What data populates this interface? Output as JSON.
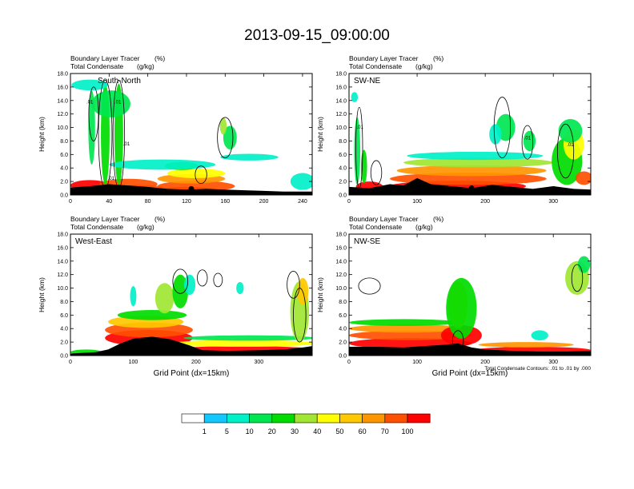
{
  "title": "2013-09-15_09:00:00",
  "chart_data": [
    {
      "type": "heatmap",
      "panel_label": "South-North",
      "subtitle_line1": "Boundary Layer Tracer",
      "subtitle_units1": "(%)",
      "subtitle_line2": "Total Condensate",
      "subtitle_units2": "(g/kg)",
      "ylabel": "Height (km)",
      "xlabel": "",
      "xlim": [
        0,
        250
      ],
      "ylim": [
        0,
        18
      ],
      "xticks": [
        0,
        40,
        80,
        120,
        160,
        200,
        240
      ],
      "yticks": [
        "0.0",
        "2.0",
        "4.0",
        "6.0",
        "8.0",
        "10.0",
        "12.0",
        "14.0",
        "16.0",
        "18.0"
      ],
      "terrain": [
        [
          0,
          1.1
        ],
        [
          20,
          1.3
        ],
        [
          40,
          1.6
        ],
        [
          60,
          1.4
        ],
        [
          80,
          1.2
        ],
        [
          100,
          0.9
        ],
        [
          120,
          0.8
        ],
        [
          140,
          0.9
        ],
        [
          160,
          0.8
        ],
        [
          180,
          0.7
        ],
        [
          200,
          0.6
        ],
        [
          220,
          0.5
        ],
        [
          240,
          0.5
        ],
        [
          250,
          0.5
        ]
      ],
      "blobs": [
        {
          "x": 20,
          "y": 1.4,
          "w": 40,
          "h": 1.6,
          "level": 100
        },
        {
          "x": 120,
          "y": 0.6,
          "w": 70,
          "h": 1.2,
          "level": 100
        },
        {
          "x": 70,
          "y": 0.9,
          "w": 60,
          "h": 1.2,
          "level": 90
        },
        {
          "x": 130,
          "y": 1.3,
          "w": 80,
          "h": 1.6,
          "level": 70
        },
        {
          "x": 60,
          "y": 1.6,
          "w": 60,
          "h": 1.6,
          "level": 70
        },
        {
          "x": 125,
          "y": 2.4,
          "w": 70,
          "h": 1.4,
          "level": 60
        },
        {
          "x": 130,
          "y": 3.2,
          "w": 60,
          "h": 1.4,
          "level": 45
        },
        {
          "x": 115,
          "y": 4.3,
          "w": 35,
          "h": 1.2,
          "level": 25
        },
        {
          "x": 36,
          "y": 9.0,
          "w": 9,
          "h": 15.0,
          "level": 25
        },
        {
          "x": 50,
          "y": 9.0,
          "w": 9,
          "h": 15.0,
          "level": 20
        },
        {
          "x": 22,
          "y": 10.0,
          "w": 7,
          "h": 11.0,
          "level": 15
        },
        {
          "x": 42,
          "y": 13.5,
          "w": 40,
          "h": 4.0,
          "level": 15
        },
        {
          "x": 20,
          "y": 16.3,
          "w": 38,
          "h": 1.6,
          "level": 5
        },
        {
          "x": 95,
          "y": 4.5,
          "w": 110,
          "h": 1.5,
          "level": 5
        },
        {
          "x": 240,
          "y": 2.0,
          "w": 25,
          "h": 2.5,
          "level": 5
        },
        {
          "x": 165,
          "y": 8.5,
          "w": 14,
          "h": 3.5,
          "level": 15
        },
        {
          "x": 185,
          "y": 5.6,
          "w": 60,
          "h": 1.0,
          "level": 5
        },
        {
          "x": 158,
          "y": 10.2,
          "w": 7,
          "h": 2.5,
          "level": 35
        }
      ],
      "contours": [
        {
          "x": 36,
          "y": 9.0,
          "rx": 7,
          "ry": 8
        },
        {
          "x": 50,
          "y": 9.0,
          "rx": 6,
          "ry": 8
        },
        {
          "x": 24,
          "y": 12.0,
          "rx": 5,
          "ry": 4
        },
        {
          "x": 160,
          "y": 8.5,
          "rx": 8,
          "ry": 3
        },
        {
          "x": 135,
          "y": 3.0,
          "rx": 6,
          "ry": 1.3
        }
      ],
      "contour_labels": [
        {
          "x": 20,
          "y": 13.9,
          "text": ".01"
        },
        {
          "x": 49,
          "y": 13.9,
          "text": ".01"
        },
        {
          "x": 58,
          "y": 7.7,
          "text": ".01"
        },
        {
          "x": 42,
          "y": 2.6,
          "text": ".01"
        }
      ],
      "marker": {
        "x": 125,
        "y": 0.9
      }
    },
    {
      "type": "heatmap",
      "panel_label": "SW-NE",
      "subtitle_line1": "Boundary Layer Tracer",
      "subtitle_units1": "(%)",
      "subtitle_line2": "Total Condensate",
      "subtitle_units2": "(g/kg)",
      "ylabel": "Height (km)",
      "xlabel": "",
      "xlim": [
        0,
        355
      ],
      "ylim": [
        0,
        18
      ],
      "xticks": [
        0,
        100,
        200,
        300
      ],
      "yticks": [
        "0.0",
        "2.0",
        "4.0",
        "6.0",
        "8.0",
        "10.0",
        "12.0",
        "14.0",
        "16.0",
        "18.0"
      ],
      "terrain": [
        [
          0,
          1.2
        ],
        [
          30,
          1.0
        ],
        [
          60,
          1.6
        ],
        [
          80,
          1.4
        ],
        [
          100,
          2.5
        ],
        [
          120,
          1.6
        ],
        [
          150,
          1.3
        ],
        [
          180,
          1.0
        ],
        [
          210,
          1.5
        ],
        [
          240,
          1.2
        ],
        [
          270,
          0.9
        ],
        [
          300,
          1.3
        ],
        [
          330,
          0.9
        ],
        [
          355,
          0.8
        ]
      ],
      "blobs": [
        {
          "x": 30,
          "y": 1.2,
          "w": 40,
          "h": 1.6,
          "level": 100
        },
        {
          "x": 160,
          "y": 1.3,
          "w": 200,
          "h": 1.6,
          "level": 100
        },
        {
          "x": 175,
          "y": 2.4,
          "w": 230,
          "h": 1.8,
          "level": 80
        },
        {
          "x": 180,
          "y": 3.6,
          "w": 220,
          "h": 1.6,
          "level": 60
        },
        {
          "x": 190,
          "y": 4.8,
          "w": 220,
          "h": 1.4,
          "level": 35
        },
        {
          "x": 185,
          "y": 5.8,
          "w": 200,
          "h": 1.2,
          "level": 5
        },
        {
          "x": 320,
          "y": 5.0,
          "w": 45,
          "h": 7.0,
          "level": 25
        },
        {
          "x": 330,
          "y": 7.5,
          "w": 30,
          "h": 4.5,
          "level": 45
        },
        {
          "x": 325,
          "y": 9.5,
          "w": 35,
          "h": 3.5,
          "level": 10
        },
        {
          "x": 230,
          "y": 10.0,
          "w": 28,
          "h": 4.0,
          "level": 15
        },
        {
          "x": 215,
          "y": 9.0,
          "w": 18,
          "h": 3.0,
          "level": 5
        },
        {
          "x": 265,
          "y": 8.0,
          "w": 18,
          "h": 3.0,
          "level": 10
        },
        {
          "x": 12,
          "y": 6.5,
          "w": 9,
          "h": 10.0,
          "level": 15
        },
        {
          "x": 22,
          "y": 4.2,
          "w": 9,
          "h": 5.0,
          "level": 25
        },
        {
          "x": 8,
          "y": 14.5,
          "w": 10,
          "h": 1.5,
          "level": 5
        },
        {
          "x": 345,
          "y": 2.5,
          "w": 25,
          "h": 2.0,
          "level": 70
        }
      ],
      "contours": [
        {
          "x": 225,
          "y": 10.0,
          "rx": 12,
          "ry": 4.5
        },
        {
          "x": 262,
          "y": 7.8,
          "rx": 8,
          "ry": 2.5
        },
        {
          "x": 15,
          "y": 7.0,
          "rx": 5,
          "ry": 6
        },
        {
          "x": 318,
          "y": 6.5,
          "rx": 12,
          "ry": 4
        },
        {
          "x": 40,
          "y": 3.3,
          "rx": 8,
          "ry": 1.8
        }
      ],
      "contour_labels": [
        {
          "x": 16,
          "y": 10.2,
          "text": ".01"
        },
        {
          "x": 262,
          "y": 8.6,
          "text": ".01"
        },
        {
          "x": 325,
          "y": 7.6,
          "text": ".01"
        }
      ],
      "marker": {
        "x": 180,
        "y": 1.0
      }
    },
    {
      "type": "heatmap",
      "panel_label": "West-East",
      "subtitle_line1": "Boundary Layer Tracer",
      "subtitle_units1": "(%)",
      "subtitle_line2": "Total Condensate",
      "subtitle_units2": "(g/kg)",
      "ylabel": "Height (km)",
      "xlabel": "Grid Point (dx=15km)",
      "xlim": [
        0,
        385
      ],
      "ylim": [
        0,
        18
      ],
      "xticks": [
        0,
        100,
        200,
        300
      ],
      "yticks": [
        "0.0",
        "2.0",
        "4.0",
        "6.0",
        "8.0",
        "10.0",
        "12.0",
        "14.0",
        "16.0",
        "18.0"
      ],
      "terrain": [
        [
          0,
          0.3
        ],
        [
          40,
          0.5
        ],
        [
          60,
          0.9
        ],
        [
          80,
          1.8
        ],
        [
          100,
          2.5
        ],
        [
          130,
          2.8
        ],
        [
          160,
          2.4
        ],
        [
          190,
          1.5
        ],
        [
          210,
          0.8
        ],
        [
          250,
          0.7
        ],
        [
          300,
          0.8
        ],
        [
          340,
          0.9
        ],
        [
          370,
          1.2
        ],
        [
          385,
          1.4
        ]
      ],
      "blobs": [
        {
          "x": 25,
          "y": 0.5,
          "w": 50,
          "h": 0.8,
          "level": 20
        },
        {
          "x": 125,
          "y": 2.6,
          "w": 140,
          "h": 2.4,
          "level": 100
        },
        {
          "x": 125,
          "y": 3.8,
          "w": 140,
          "h": 2.2,
          "level": 80
        },
        {
          "x": 120,
          "y": 5.0,
          "w": 120,
          "h": 1.8,
          "level": 55
        },
        {
          "x": 130,
          "y": 6.0,
          "w": 110,
          "h": 1.5,
          "level": 25
        },
        {
          "x": 275,
          "y": 0.9,
          "w": 220,
          "h": 1.0,
          "level": 100
        },
        {
          "x": 275,
          "y": 1.8,
          "w": 230,
          "h": 1.0,
          "level": 45
        },
        {
          "x": 285,
          "y": 2.6,
          "w": 210,
          "h": 0.8,
          "level": 10
        },
        {
          "x": 150,
          "y": 8.5,
          "w": 30,
          "h": 4.5,
          "level": 35
        },
        {
          "x": 175,
          "y": 9.5,
          "w": 25,
          "h": 5.0,
          "level": 25
        },
        {
          "x": 365,
          "y": 6.5,
          "w": 30,
          "h": 9.0,
          "level": 35
        },
        {
          "x": 370,
          "y": 9.5,
          "w": 18,
          "h": 4.0,
          "level": 55
        },
        {
          "x": 100,
          "y": 8.8,
          "w": 10,
          "h": 3.0,
          "level": 5
        },
        {
          "x": 190,
          "y": 10.5,
          "w": 18,
          "h": 3.0,
          "level": 5
        },
        {
          "x": 270,
          "y": 10.0,
          "w": 12,
          "h": 1.8,
          "level": 5
        }
      ],
      "contours": [
        {
          "x": 175,
          "y": 11.0,
          "rx": 12,
          "ry": 1.8
        },
        {
          "x": 210,
          "y": 11.5,
          "rx": 8,
          "ry": 1.2
        },
        {
          "x": 235,
          "y": 11.2,
          "rx": 7,
          "ry": 1.0
        },
        {
          "x": 355,
          "y": 10.5,
          "rx": 10,
          "ry": 2.0
        },
        {
          "x": 365,
          "y": 6.0,
          "rx": 10,
          "ry": 4.0
        }
      ],
      "contour_labels": [],
      "marker": {
        "x": 190,
        "y": 0.8
      }
    },
    {
      "type": "heatmap",
      "panel_label": "NW-SE",
      "subtitle_line1": "Boundary Layer Tracer",
      "subtitle_units1": "(%)",
      "subtitle_line2": "Total Condensate",
      "subtitle_units2": "(g/kg)",
      "ylabel": "Height (km)",
      "xlabel": "Grid Point (dx=15km)",
      "xlim": [
        0,
        355
      ],
      "ylim": [
        0,
        18
      ],
      "xticks": [
        0,
        100,
        200,
        300
      ],
      "yticks": [
        "0.0",
        "2.0",
        "4.0",
        "6.0",
        "8.0",
        "10.0",
        "12.0",
        "14.0",
        "16.0",
        "18.0"
      ],
      "terrain": [
        [
          0,
          1.3
        ],
        [
          40,
          1.3
        ],
        [
          80,
          1.2
        ],
        [
          110,
          1.4
        ],
        [
          140,
          1.6
        ],
        [
          160,
          1.8
        ],
        [
          180,
          1.2
        ],
        [
          200,
          0.9
        ],
        [
          240,
          0.7
        ],
        [
          280,
          0.6
        ],
        [
          320,
          0.6
        ],
        [
          355,
          0.7
        ]
      ],
      "blobs": [
        {
          "x": 90,
          "y": 1.8,
          "w": 180,
          "h": 1.6,
          "level": 100
        },
        {
          "x": 90,
          "y": 3.0,
          "w": 180,
          "h": 1.4,
          "level": 80
        },
        {
          "x": 85,
          "y": 4.0,
          "w": 170,
          "h": 1.2,
          "level": 60
        },
        {
          "x": 80,
          "y": 4.9,
          "w": 160,
          "h": 1.0,
          "level": 25
        },
        {
          "x": 165,
          "y": 3.0,
          "w": 60,
          "h": 3.0,
          "level": 100
        },
        {
          "x": 160,
          "y": 7.5,
          "w": 28,
          "h": 7.0,
          "level": 55
        },
        {
          "x": 165,
          "y": 7.0,
          "w": 45,
          "h": 9.0,
          "level": 25
        },
        {
          "x": 270,
          "y": 0.8,
          "w": 170,
          "h": 1.0,
          "level": 100
        },
        {
          "x": 260,
          "y": 1.6,
          "w": 140,
          "h": 0.8,
          "level": 60
        },
        {
          "x": 335,
          "y": 11.5,
          "w": 35,
          "h": 5.0,
          "level": 35
        },
        {
          "x": 345,
          "y": 13.5,
          "w": 18,
          "h": 2.5,
          "level": 10
        },
        {
          "x": 280,
          "y": 3.0,
          "w": 25,
          "h": 1.5,
          "level": 5
        }
      ],
      "contours": [
        {
          "x": 30,
          "y": 10.3,
          "rx": 16,
          "ry": 1.2
        },
        {
          "x": 160,
          "y": 2.2,
          "rx": 8,
          "ry": 1.5
        },
        {
          "x": 335,
          "y": 11.5,
          "rx": 8,
          "ry": 2.0
        }
      ],
      "contour_labels": [],
      "marker": {
        "x": 175,
        "y": 0.9
      },
      "footnote": "Total Condensate Contours: .01 to .01 by .000"
    }
  ],
  "colorbar": {
    "levels": [
      "1",
      "5",
      "10",
      "20",
      "30",
      "40",
      "50",
      "60",
      "70",
      "100"
    ],
    "colors": [
      "#ffffff",
      "#2d8cff",
      "#14c8ff",
      "#00f0c8",
      "#00e650",
      "#00dc00",
      "#a0e632",
      "#ffff00",
      "#ffc800",
      "#ff9600",
      "#ff5000",
      "#ff0000"
    ]
  }
}
